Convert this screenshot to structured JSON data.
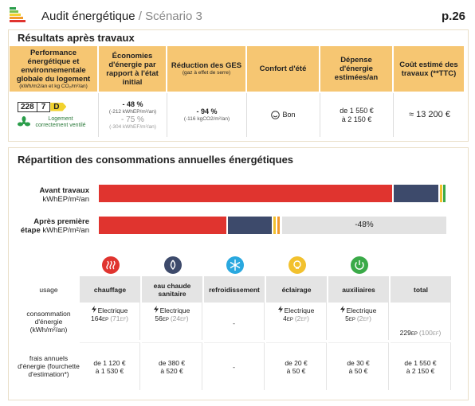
{
  "header": {
    "title": "Audit énergétique",
    "separator": "/",
    "subtitle": "Scénario 3",
    "page": "p.26"
  },
  "results": {
    "title": "Résultats après travaux",
    "columns": [
      {
        "label": "Performance énergétique et environnementale globale du logement",
        "note": "(kWh/m2/an et kg CO₂/m²/an)"
      },
      {
        "label": "Économies d'énergie par rapport à l'état initial"
      },
      {
        "label": "Réduction des GES",
        "note": "(gaz à effet de serre)"
      },
      {
        "label": "Confort d'été"
      },
      {
        "label": "Dépense d'énergie estimées/an"
      },
      {
        "label": "Coût estimé des travaux (**TTC)"
      }
    ],
    "performance": {
      "energy": "228",
      "climate": "7",
      "class": "D",
      "ventilation": "Logement correctement ventilé"
    },
    "savings": {
      "ep": "- 48 %",
      "ep_detail": "(-212 kWhEP/m²/an)",
      "ef": "- 75 %",
      "ef_detail": "(-304 kWhEF/m²/an)"
    },
    "ges": {
      "value": "- 94 %",
      "detail": "(-116 kgCO2/m²/an)"
    },
    "comfort": "Bon",
    "expense": [
      "de 1 550 €",
      "à 2 150 €"
    ],
    "cost": "≈ 13 200 €"
  },
  "distribution": {
    "title": "Répartition des consommations annuelles énergétiques",
    "bars": [
      {
        "label": "Avant travaux",
        "unit": "kWhEP/m²/an"
      },
      {
        "label": "Après première étape",
        "unit": "kWhEP/m²/an",
        "reduction": "-48%"
      }
    ],
    "table": {
      "row_labels": [
        "usage",
        "consommation d'énergie (kWh/m²/an)",
        "frais annuels d'énergie (fourchette d'estimation*)"
      ],
      "columns": [
        {
          "usage": "chauffage",
          "consumption": {
            "source": "Electrique",
            "ep": "164",
            "ep_unit": "EP",
            "ef": "(71",
            "ef_unit": "EF",
            "ef_end": ")"
          },
          "cost": [
            "de 1 120 €",
            "à 1 530 €"
          ]
        },
        {
          "usage": "eau chaude sanitaire",
          "consumption": {
            "source": "Electrique",
            "ep": "56",
            "ep_unit": "EP",
            "ef": "(24",
            "ef_unit": "EF",
            "ef_end": ")"
          },
          "cost": [
            "de 380 €",
            "à 520 €"
          ]
        },
        {
          "usage": "refroidissement",
          "consumption": "-",
          "cost": "-"
        },
        {
          "usage": "éclairage",
          "consumption": {
            "source": "Electrique",
            "ep": "4",
            "ep_unit": "EP",
            "ef": "(2",
            "ef_unit": "EF",
            "ef_end": ")"
          },
          "cost": [
            "de 20 €",
            "à 50 €"
          ]
        },
        {
          "usage": "auxiliaires",
          "consumption": {
            "source": "Electrique",
            "ep": "5",
            "ep_unit": "EP",
            "ef": "(2",
            "ef_unit": "EF",
            "ef_end": ")"
          },
          "cost": [
            "de 30 €",
            "à 50 €"
          ]
        },
        {
          "usage": "total",
          "consumption": {
            "ep": "229",
            "ep_unit": "EP",
            "ef": "(100",
            "ef_unit": "EF",
            "ef_end": ")"
          },
          "cost": [
            "de 1 550 €",
            "à 2 150 €"
          ]
        }
      ]
    }
  }
}
